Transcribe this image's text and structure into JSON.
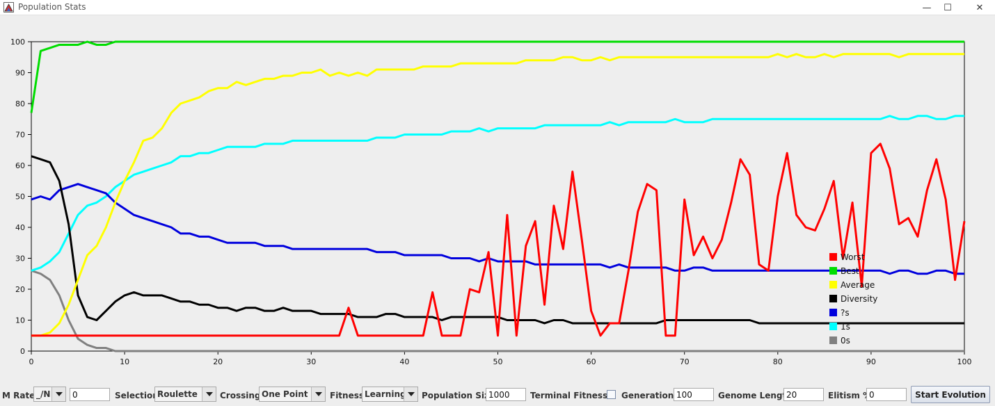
{
  "window": {
    "title": "Population Stats",
    "minimize_glyph": "—",
    "maximize_glyph": "☐",
    "close_glyph": "✕"
  },
  "chart_data": {
    "type": "line",
    "xlim": [
      0,
      100
    ],
    "ylim": [
      0,
      100
    ],
    "xticks": [
      "0",
      "10",
      "20",
      "30",
      "40",
      "50",
      "60",
      "70",
      "80",
      "90",
      "100"
    ],
    "yticks": [
      "0",
      "10",
      "20",
      "30",
      "40",
      "50",
      "60",
      "70",
      "80",
      "90",
      "100"
    ],
    "legend_position": "bottom-right",
    "series": [
      {
        "name": "Worst",
        "color": "#ff0000",
        "values": [
          5,
          5,
          5,
          5,
          5,
          5,
          5,
          5,
          5,
          5,
          5,
          5,
          5,
          5,
          5,
          5,
          5,
          5,
          5,
          5,
          5,
          5,
          5,
          5,
          5,
          5,
          5,
          5,
          5,
          5,
          5,
          5,
          5,
          5,
          14,
          5,
          5,
          5,
          5,
          5,
          5,
          5,
          5,
          19,
          5,
          5,
          5,
          20,
          19,
          32,
          5,
          44,
          5,
          34,
          42,
          15,
          47,
          33,
          58,
          36,
          13,
          5,
          9,
          9,
          26,
          45,
          54,
          52,
          5,
          5,
          49,
          31,
          37,
          30,
          36,
          48,
          62,
          57,
          28,
          26,
          50,
          64,
          44,
          40,
          39,
          46,
          55,
          30,
          48,
          21,
          64,
          67,
          59,
          41,
          43,
          37,
          52,
          62,
          49,
          23,
          42
        ]
      },
      {
        "name": "Best",
        "color": "#00dd00",
        "values": [
          77,
          97,
          98,
          99,
          99,
          99,
          100,
          99,
          99,
          100,
          100,
          100,
          100,
          100,
          100,
          100,
          100,
          100,
          100,
          100,
          100,
          100,
          100,
          100,
          100,
          100,
          100,
          100,
          100,
          100,
          100,
          100,
          100,
          100,
          100,
          100,
          100,
          100,
          100,
          100,
          100,
          100,
          100,
          100,
          100,
          100,
          100,
          100,
          100,
          100,
          100,
          100,
          100,
          100,
          100,
          100,
          100,
          100,
          100,
          100,
          100,
          100,
          100,
          100,
          100,
          100,
          100,
          100,
          100,
          100,
          100,
          100,
          100,
          100,
          100,
          100,
          100,
          100,
          100,
          100,
          100,
          100,
          100,
          100,
          100,
          100,
          100,
          100,
          100,
          100,
          100,
          100,
          100,
          100,
          100,
          100,
          100,
          100,
          100,
          100,
          100
        ]
      },
      {
        "name": "Average",
        "color": "#ffff00",
        "values": [
          5,
          5,
          6,
          9,
          15,
          23,
          31,
          34,
          40,
          48,
          55,
          61,
          68,
          69,
          72,
          77,
          80,
          81,
          82,
          84,
          85,
          85,
          87,
          86,
          87,
          88,
          88,
          89,
          89,
          90,
          90,
          91,
          89,
          90,
          89,
          90,
          89,
          91,
          91,
          91,
          91,
          91,
          92,
          92,
          92,
          92,
          93,
          93,
          93,
          93,
          93,
          93,
          93,
          94,
          94,
          94,
          94,
          95,
          95,
          94,
          94,
          95,
          94,
          95,
          95,
          95,
          95,
          95,
          95,
          95,
          95,
          95,
          95,
          95,
          95,
          95,
          95,
          95,
          95,
          95,
          96,
          95,
          96,
          95,
          95,
          96,
          95,
          96,
          96,
          96,
          96,
          96,
          96,
          95,
          96,
          96,
          96,
          96,
          96,
          96,
          96
        ]
      },
      {
        "name": "Diversity",
        "color": "#000000",
        "values": [
          63,
          62,
          61,
          55,
          41,
          18,
          11,
          10,
          13,
          16,
          18,
          19,
          18,
          18,
          18,
          17,
          16,
          16,
          15,
          15,
          14,
          14,
          13,
          14,
          14,
          13,
          13,
          14,
          13,
          13,
          13,
          12,
          12,
          12,
          12,
          11,
          11,
          11,
          12,
          12,
          11,
          11,
          11,
          11,
          10,
          11,
          11,
          11,
          11,
          11,
          11,
          10,
          10,
          10,
          10,
          9,
          10,
          10,
          9,
          9,
          9,
          9,
          9,
          9,
          9,
          9,
          9,
          9,
          10,
          10,
          10,
          10,
          10,
          10,
          10,
          10,
          10,
          10,
          9,
          9,
          9,
          9,
          9,
          9,
          9,
          9,
          9,
          9,
          9,
          9,
          9,
          9,
          9,
          9,
          9,
          9,
          9,
          9,
          9,
          9,
          9
        ]
      },
      {
        "name": "?s",
        "color": "#0000dd",
        "values": [
          49,
          50,
          49,
          52,
          53,
          54,
          53,
          52,
          51,
          48,
          46,
          44,
          43,
          42,
          41,
          40,
          38,
          38,
          37,
          37,
          36,
          35,
          35,
          35,
          35,
          34,
          34,
          34,
          33,
          33,
          33,
          33,
          33,
          33,
          33,
          33,
          33,
          32,
          32,
          32,
          31,
          31,
          31,
          31,
          31,
          30,
          30,
          30,
          29,
          30,
          29,
          29,
          29,
          29,
          28,
          28,
          28,
          28,
          28,
          28,
          28,
          28,
          27,
          28,
          27,
          27,
          27,
          27,
          27,
          26,
          26,
          27,
          27,
          26,
          26,
          26,
          26,
          26,
          26,
          26,
          26,
          26,
          26,
          26,
          26,
          26,
          26,
          26,
          26,
          26,
          26,
          26,
          25,
          26,
          26,
          25,
          25,
          26,
          26,
          25,
          25
        ]
      },
      {
        "name": "1s",
        "color": "#00ffff",
        "values": [
          26,
          27,
          29,
          32,
          38,
          44,
          47,
          48,
          50,
          53,
          55,
          57,
          58,
          59,
          60,
          61,
          63,
          63,
          64,
          64,
          65,
          66,
          66,
          66,
          66,
          67,
          67,
          67,
          68,
          68,
          68,
          68,
          68,
          68,
          68,
          68,
          68,
          69,
          69,
          69,
          70,
          70,
          70,
          70,
          70,
          71,
          71,
          71,
          72,
          71,
          72,
          72,
          72,
          72,
          72,
          73,
          73,
          73,
          73,
          73,
          73,
          73,
          74,
          73,
          74,
          74,
          74,
          74,
          74,
          75,
          74,
          74,
          74,
          75,
          75,
          75,
          75,
          75,
          75,
          75,
          75,
          75,
          75,
          75,
          75,
          75,
          75,
          75,
          75,
          75,
          75,
          75,
          76,
          75,
          75,
          76,
          76,
          75,
          75,
          76,
          76
        ]
      },
      {
        "name": "0s",
        "color": "#808080",
        "values": [
          26,
          25,
          23,
          18,
          10,
          4,
          2,
          1,
          1,
          0,
          0,
          0,
          0,
          0,
          0,
          0,
          0,
          0,
          0,
          0,
          0,
          0,
          0,
          0,
          0,
          0,
          0,
          0,
          0,
          0,
          0,
          0,
          0,
          0,
          0,
          0,
          0,
          0,
          0,
          0,
          0,
          0,
          0,
          0,
          0,
          0,
          0,
          0,
          0,
          0,
          0,
          0,
          0,
          0,
          0,
          0,
          0,
          0,
          0,
          0,
          0,
          0,
          0,
          0,
          0,
          0,
          0,
          0,
          0,
          0,
          0,
          0,
          0,
          0,
          0,
          0,
          0,
          0,
          0,
          0,
          0,
          0,
          0,
          0,
          0,
          0,
          0,
          0,
          0,
          0,
          0,
          0,
          0,
          0,
          0,
          0,
          0,
          0,
          0,
          0,
          0
        ]
      }
    ]
  },
  "controls": {
    "m_rate_label": "M Rate:",
    "m_rate_mode": "_/N",
    "m_rate_value": "0",
    "selection_label": "Selection",
    "selection_value": "Roulette",
    "crossing_label": "Crossing",
    "crossing_value": "One Point",
    "fitness_label": "Fitness",
    "fitness_value": "Learning",
    "population_label": "Population Size",
    "population_value": "1000",
    "terminal_label": "Terminal Fitness?",
    "terminal_checked": false,
    "generations_label": "Generations",
    "generations_value": "100",
    "genome_label": "Genome Length",
    "genome_value": "20",
    "elitism_label": "Elitism %",
    "elitism_value": "0",
    "start_label": "Start Evolution"
  }
}
